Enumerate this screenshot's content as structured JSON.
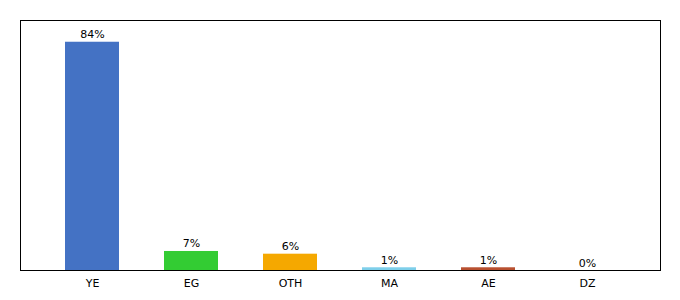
{
  "chart_data": {
    "type": "bar",
    "categories": [
      "YE",
      "EG",
      "OTH",
      "MA",
      "AE",
      "DZ"
    ],
    "values": [
      84,
      7,
      6,
      1,
      1,
      0
    ],
    "value_labels": [
      "84%",
      "7%",
      "6%",
      "1%",
      "1%",
      "0%"
    ],
    "colors": [
      "#4472C4",
      "#33CC33",
      "#F5A800",
      "#7ECFEA",
      "#B85030",
      "#AAAAAA"
    ],
    "ylim": [
      0,
      92
    ],
    "data_labels": true,
    "tick_labels": "x",
    "grid": false
  }
}
